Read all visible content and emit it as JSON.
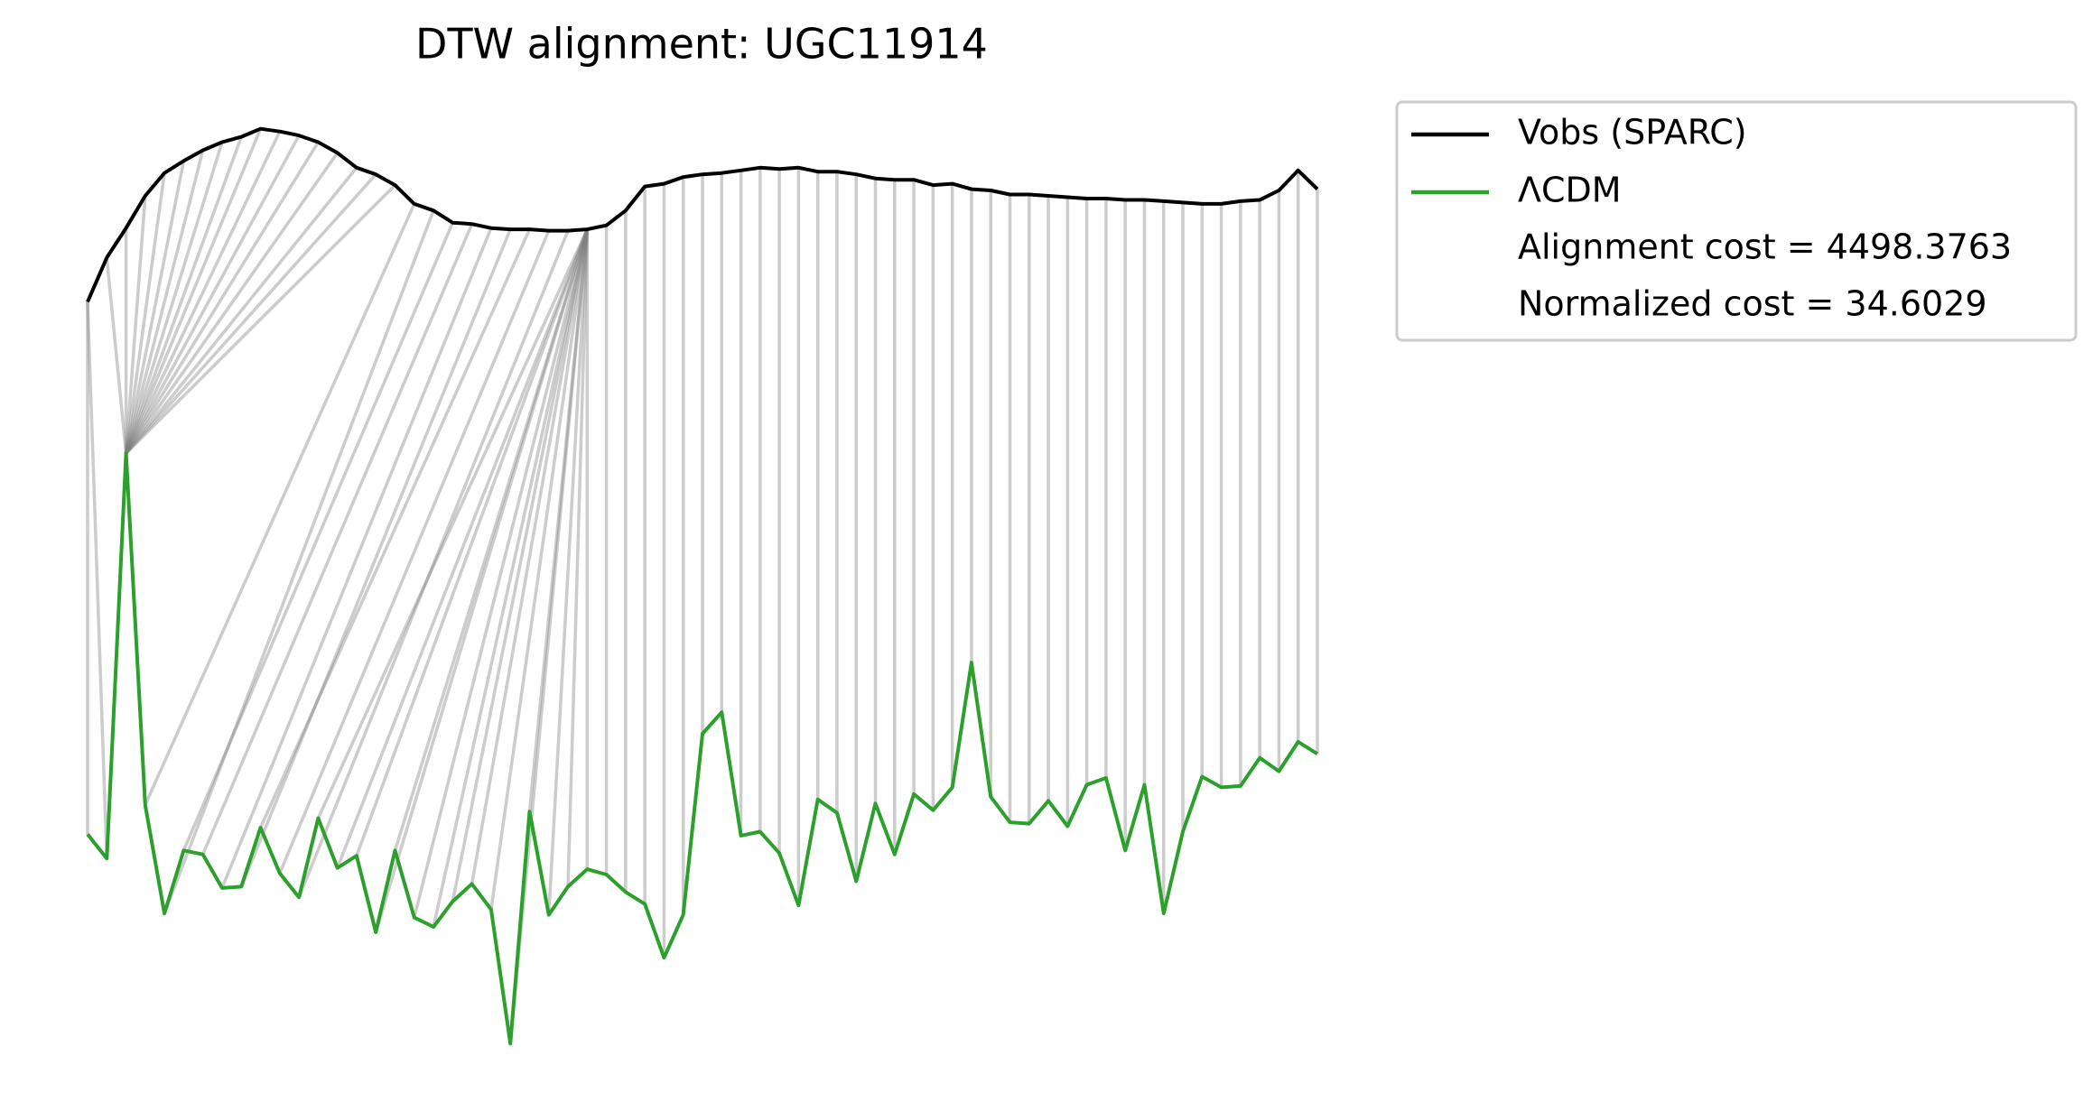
{
  "chart_data": {
    "type": "dtw",
    "title": "DTW alignment: UGC11914",
    "series": [
      {
        "name": "Vobs (SPARC)",
        "color": "#000000",
        "values": [
          575,
          608,
          630,
          654,
          671,
          680,
          688,
          694,
          698,
          704,
          702,
          699,
          694,
          686,
          675,
          670,
          662,
          648,
          643,
          634,
          633,
          630,
          629,
          629,
          628,
          628,
          629,
          632,
          643,
          661,
          663,
          668,
          670,
          671,
          673,
          675,
          674,
          675,
          672,
          672,
          670,
          667,
          666,
          666,
          662,
          663,
          659,
          658,
          655,
          655,
          654,
          653,
          652,
          652,
          651,
          651,
          650,
          649,
          648,
          648,
          650,
          651,
          658,
          673,
          659
        ]
      },
      {
        "name": "ΛCDM",
        "color": "#2ca02c",
        "values": [
          178,
          160,
          462,
          200,
          119,
          166,
          163,
          138,
          139,
          183,
          149,
          131,
          190,
          153,
          162,
          105,
          166,
          116,
          109,
          128,
          141,
          122,
          22,
          195,
          118,
          139,
          152,
          148,
          135,
          126,
          86,
          118,
          253,
          269,
          177,
          180,
          164,
          125,
          204,
          194,
          143,
          201,
          163,
          208,
          196,
          213,
          306,
          206,
          187,
          186,
          203,
          184,
          215,
          220,
          166,
          215,
          119,
          180,
          221,
          213,
          214,
          235,
          225,
          247,
          238
        ]
      }
    ],
    "alignment": [
      [
        0,
        0
      ],
      [
        0,
        1
      ],
      [
        1,
        2
      ],
      [
        2,
        2
      ],
      [
        3,
        2
      ],
      [
        4,
        2
      ],
      [
        5,
        2
      ],
      [
        6,
        2
      ],
      [
        7,
        2
      ],
      [
        8,
        2
      ],
      [
        9,
        2
      ],
      [
        10,
        2
      ],
      [
        11,
        2
      ],
      [
        12,
        2
      ],
      [
        13,
        2
      ],
      [
        14,
        2
      ],
      [
        15,
        2
      ],
      [
        16,
        2
      ],
      [
        17,
        3
      ],
      [
        18,
        4
      ],
      [
        19,
        5
      ],
      [
        20,
        6
      ],
      [
        21,
        7
      ],
      [
        22,
        8
      ],
      [
        23,
        9
      ],
      [
        24,
        10
      ],
      [
        25,
        11
      ],
      [
        26,
        12
      ],
      [
        26,
        13
      ],
      [
        26,
        14
      ],
      [
        26,
        15
      ],
      [
        26,
        16
      ],
      [
        26,
        17
      ],
      [
        26,
        18
      ],
      [
        26,
        19
      ],
      [
        26,
        20
      ],
      [
        26,
        21
      ],
      [
        26,
        22
      ],
      [
        26,
        23
      ],
      [
        26,
        24
      ],
      [
        26,
        25
      ],
      [
        26,
        26
      ],
      [
        27,
        27
      ],
      [
        28,
        28
      ],
      [
        29,
        29
      ],
      [
        30,
        30
      ],
      [
        31,
        31
      ],
      [
        32,
        32
      ],
      [
        33,
        33
      ],
      [
        34,
        34
      ],
      [
        35,
        35
      ],
      [
        36,
        36
      ],
      [
        37,
        37
      ],
      [
        38,
        38
      ],
      [
        39,
        39
      ],
      [
        40,
        40
      ],
      [
        41,
        41
      ],
      [
        42,
        42
      ],
      [
        43,
        43
      ],
      [
        44,
        44
      ],
      [
        45,
        45
      ],
      [
        46,
        46
      ],
      [
        47,
        47
      ],
      [
        48,
        48
      ],
      [
        49,
        49
      ],
      [
        50,
        50
      ],
      [
        51,
        51
      ],
      [
        52,
        52
      ],
      [
        53,
        53
      ],
      [
        54,
        54
      ],
      [
        55,
        55
      ],
      [
        56,
        56
      ],
      [
        57,
        57
      ],
      [
        58,
        58
      ],
      [
        59,
        59
      ],
      [
        60,
        60
      ],
      [
        61,
        61
      ],
      [
        62,
        62
      ],
      [
        63,
        63
      ],
      [
        64,
        64
      ]
    ],
    "alignment_color": "#808080",
    "annotations": [
      "Alignment cost = 4498.3763",
      "Normalized cost = 34.6029"
    ],
    "ylim": [
      0,
      800
    ]
  }
}
